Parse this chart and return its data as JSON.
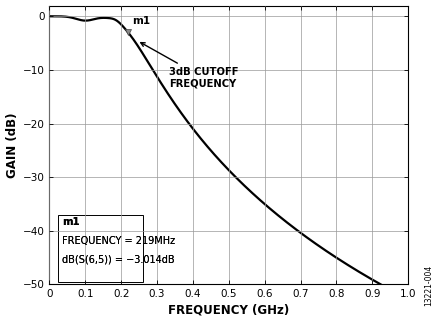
{
  "xlabel": "FREQUENCY (GHz)",
  "ylabel": "GAIN (dB)",
  "xlim": [
    0,
    1.0
  ],
  "ylim": [
    -50,
    2
  ],
  "yticks": [
    0,
    -10,
    -20,
    -30,
    -40,
    -50
  ],
  "ytick_labels": [
    "0",
    "−10",
    "−20",
    "−30",
    "−40",
    "−50"
  ],
  "xticks": [
    0,
    0.1,
    0.2,
    0.3,
    0.4,
    0.5,
    0.6,
    0.7,
    0.8,
    0.9,
    1.0
  ],
  "xtick_labels": [
    "0",
    "0.1",
    "0.2",
    "0.3",
    "0.4",
    "0.5",
    "0.6",
    "0.7",
    "0.8",
    "0.9",
    "1.0"
  ],
  "line_color": "#000000",
  "line_width": 1.6,
  "marker_freq": 0.219,
  "marker_gain": -3.014,
  "marker_label": "m1",
  "annotation_text": "3dB CUTOFF\nFREQUENCY",
  "legend_line1": "m1",
  "legend_line2": "FREQUENCY = 219MHz",
  "legend_line3": "dB(S(6,5)) = −3.014dB",
  "watermark": "13221-004",
  "bg_color": "#ffffff",
  "grid_color": "#999999"
}
